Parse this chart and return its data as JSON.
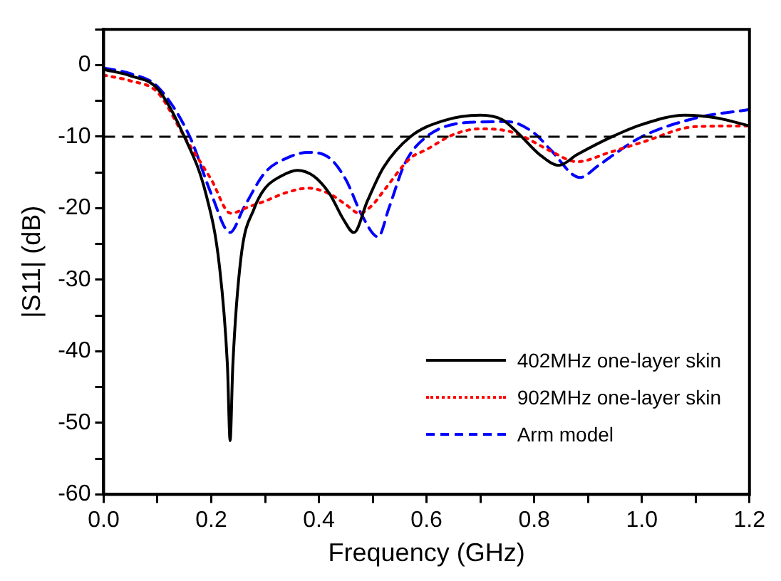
{
  "chart_data": {
    "type": "line",
    "xlabel": "Frequency (GHz)",
    "ylabel": "|S11| (dB)",
    "xlim": [
      0,
      1.2
    ],
    "ylim": [
      -60,
      5
    ],
    "xticks": [
      {
        "value": 0,
        "label": "0.0"
      },
      {
        "value": 0.1,
        "label": null
      },
      {
        "value": 0.2,
        "label": "0.2"
      },
      {
        "value": 0.3,
        "label": null
      },
      {
        "value": 0.4,
        "label": "0.4"
      },
      {
        "value": 0.5,
        "label": null
      },
      {
        "value": 0.6,
        "label": "0.6"
      },
      {
        "value": 0.7,
        "label": null
      },
      {
        "value": 0.8,
        "label": "0.8"
      },
      {
        "value": 0.9,
        "label": null
      },
      {
        "value": 1.0,
        "label": "1.0"
      },
      {
        "value": 1.1,
        "label": null
      },
      {
        "value": 1.2,
        "label": "1.2"
      }
    ],
    "yticks": [
      -60,
      {
        "value": -55,
        "label": null
      },
      -50,
      {
        "value": -45,
        "label": null
      },
      -40,
      {
        "value": -35,
        "label": null
      },
      -30,
      {
        "value": -25,
        "label": null
      },
      -20,
      {
        "value": -15,
        "label": null
      },
      -10,
      {
        "value": -5,
        "label": null
      },
      0,
      {
        "value": 5,
        "label": null
      }
    ],
    "grid": false,
    "legend": "bottom right",
    "marker": "none",
    "ref_lines": [
      {
        "axis": "y",
        "value": -10,
        "color": "#000000",
        "line_style": "dashed"
      }
    ],
    "series": [
      {
        "name": "402MHz one-layer skin",
        "color": "#000000",
        "line_style": "solid",
        "x": [
          0,
          0.05,
          0.1,
          0.15,
          0.19,
          0.215,
          0.23,
          0.235,
          0.24,
          0.255,
          0.28,
          0.3,
          0.33,
          0.36,
          0.39,
          0.42,
          0.445,
          0.465,
          0.49,
          0.52,
          0.57,
          0.63,
          0.7,
          0.74,
          0.77,
          0.81,
          0.846,
          0.88,
          0.945,
          1.0,
          1.08,
          1.14,
          1.2
        ],
        "values": [
          -0.6,
          -1.5,
          -3.3,
          -10,
          -18,
          -28,
          -42,
          -52.5,
          -42,
          -27,
          -20,
          -17.2,
          -15.5,
          -14.7,
          -15.5,
          -18,
          -21.5,
          -23.4,
          -19,
          -14.3,
          -10,
          -7.8,
          -7,
          -7.6,
          -9.5,
          -12.5,
          -14,
          -12.5,
          -10,
          -8.3,
          -7,
          -7.4,
          -8.5
        ]
      },
      {
        "name": "902MHz one-layer skin",
        "color": "#ff0000",
        "line_style": "dotted",
        "x": [
          0,
          0.05,
          0.1,
          0.15,
          0.2,
          0.236,
          0.27,
          0.3,
          0.34,
          0.38,
          0.42,
          0.45,
          0.475,
          0.5,
          0.52,
          0.57,
          0.6,
          0.65,
          0.7,
          0.75,
          0.78,
          0.83,
          0.88,
          0.94,
          1.0,
          1.1,
          1.2
        ],
        "values": [
          -1.4,
          -2.2,
          -3.8,
          -10,
          -16,
          -20.7,
          -19.8,
          -19,
          -17.8,
          -17.2,
          -18,
          -19.5,
          -20.7,
          -19.5,
          -17.6,
          -13,
          -11.8,
          -9.7,
          -8.9,
          -9.2,
          -10,
          -12,
          -13.5,
          -12.2,
          -10.8,
          -8.6,
          -8.5
        ]
      },
      {
        "name": "Arm model",
        "color": "#0000ff",
        "line_style": "dashed",
        "x": [
          0,
          0.05,
          0.1,
          0.16,
          0.2,
          0.235,
          0.26,
          0.3,
          0.34,
          0.38,
          0.42,
          0.45,
          0.48,
          0.51,
          0.53,
          0.56,
          0.6,
          0.68,
          0.75,
          0.8,
          0.83,
          0.885,
          0.92,
          0.95,
          1.0,
          1.1,
          1.2
        ],
        "values": [
          -0.4,
          -1.2,
          -3,
          -10,
          -18,
          -23.4,
          -20,
          -15,
          -13,
          -12.2,
          -13,
          -16,
          -21,
          -24,
          -20,
          -13.7,
          -10,
          -8,
          -7.9,
          -9.5,
          -11.8,
          -15.7,
          -14,
          -12.4,
          -10,
          -7.4,
          -6.2
        ]
      }
    ]
  }
}
